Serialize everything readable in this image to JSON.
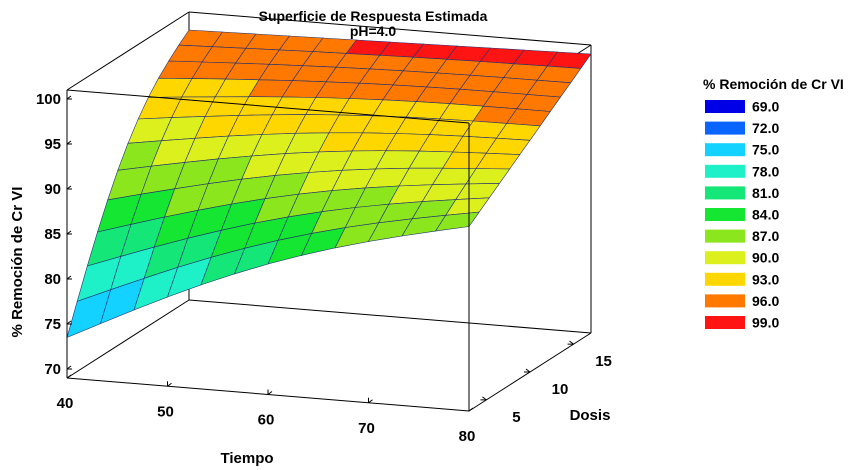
{
  "chart_data": {
    "type": "surface3d",
    "title": "Superficie de Respuesta Estimada",
    "subtitle": "pH=4.0",
    "xlabel": "Tiempo",
    "ylabel": "Dosis",
    "zlabel": "% Remoción de Cr VI",
    "xlim": [
      40,
      80
    ],
    "ylim": [
      3,
      17
    ],
    "zlim": [
      69,
      101
    ],
    "xticks": [
      "40",
      "50",
      "60",
      "70",
      "80"
    ],
    "yticks": [
      "5",
      "10",
      "15"
    ],
    "zticks": [
      "70",
      "75",
      "80",
      "85",
      "90",
      "95",
      "100"
    ],
    "surface_corners": {
      "tiempo_40_dosis_3": 73.5,
      "tiempo_80_dosis_3": 89.5,
      "tiempo_40_dosis_17": 99.0,
      "tiempo_80_dosis_17": 100.0
    },
    "grid": "12 x 12",
    "legend": {
      "title": "% Remoción de Cr VI",
      "placement": "right",
      "items": [
        {
          "label": "69.0",
          "color": "#0000e6"
        },
        {
          "label": "72.0",
          "color": "#0a64ff"
        },
        {
          "label": "75.0",
          "color": "#14d2ff"
        },
        {
          "label": "78.0",
          "color": "#1ef0c8"
        },
        {
          "label": "81.0",
          "color": "#14e678"
        },
        {
          "label": "84.0",
          "color": "#14e632"
        },
        {
          "label": "87.0",
          "color": "#8ce61e"
        },
        {
          "label": "90.0",
          "color": "#dcf01e"
        },
        {
          "label": "93.0",
          "color": "#ffd700"
        },
        {
          "label": "96.0",
          "color": "#ff7800"
        },
        {
          "label": "99.0",
          "color": "#ff1414"
        }
      ]
    }
  }
}
